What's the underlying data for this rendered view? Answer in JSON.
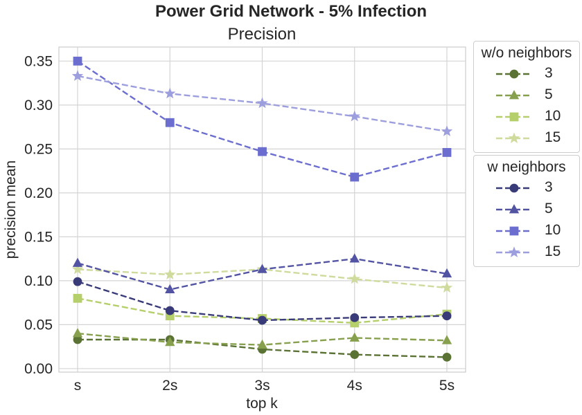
{
  "chart_data": {
    "type": "line",
    "title": "Power Grid Network - 5% Infection",
    "subtitle": "Precision",
    "xlabel": "top k",
    "ylabel": "precision mean",
    "categories": [
      "s",
      "2s",
      "3s",
      "4s",
      "5s"
    ],
    "ylim": [
      -0.004,
      0.366
    ],
    "yticks": [
      "0.00",
      "0.05",
      "0.10",
      "0.15",
      "0.20",
      "0.25",
      "0.30",
      "0.35"
    ],
    "grid": true,
    "legend_placement": "outside-right",
    "legends": [
      {
        "title": "w/o neighbors",
        "series": [
          {
            "name": "3",
            "color": "#5a7233",
            "marker": "circle",
            "values": [
              0.033,
              0.033,
              0.022,
              0.016,
              0.013
            ]
          },
          {
            "name": "5",
            "color": "#86a04e",
            "marker": "triangle",
            "values": [
              0.04,
              0.03,
              0.027,
              0.035,
              0.032
            ]
          },
          {
            "name": "10",
            "color": "#b5cf6b",
            "marker": "square",
            "values": [
              0.08,
              0.06,
              0.057,
              0.052,
              0.062
            ]
          },
          {
            "name": "15",
            "color": "#cedb9c",
            "marker": "star",
            "values": [
              0.113,
              0.107,
              0.113,
              0.102,
              0.092
            ]
          }
        ]
      },
      {
        "title": "w neighbors",
        "series": [
          {
            "name": "3",
            "color": "#393b79",
            "marker": "circle",
            "values": [
              0.099,
              0.066,
              0.055,
              0.058,
              0.06
            ]
          },
          {
            "name": "5",
            "color": "#5254a3",
            "marker": "triangle",
            "values": [
              0.12,
              0.09,
              0.113,
              0.125,
              0.108
            ]
          },
          {
            "name": "10",
            "color": "#6b6ecf",
            "marker": "square",
            "values": [
              0.35,
              0.28,
              0.247,
              0.218,
              0.246
            ]
          },
          {
            "name": "15",
            "color": "#9c9ede",
            "marker": "star",
            "values": [
              0.333,
              0.313,
              0.302,
              0.287,
              0.27
            ]
          }
        ]
      }
    ]
  }
}
